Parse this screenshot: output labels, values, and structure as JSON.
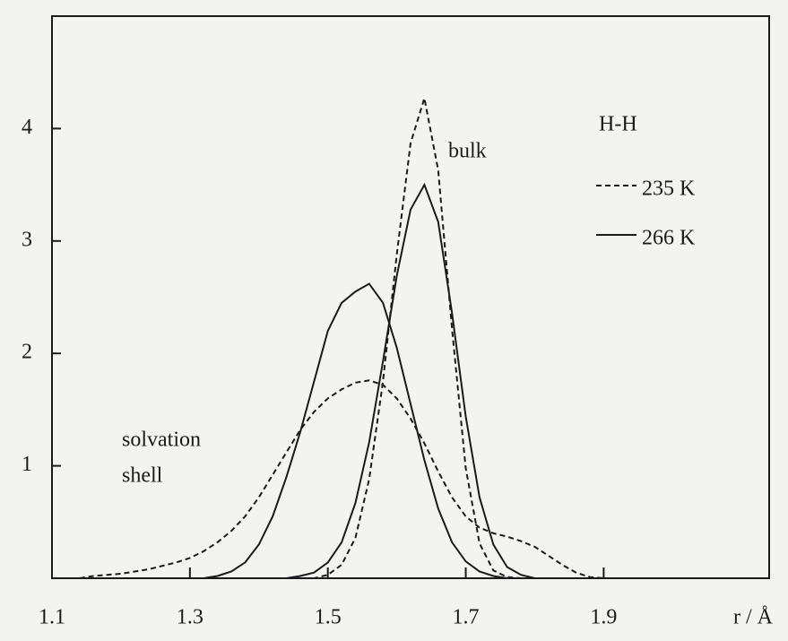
{
  "chart_data": {
    "type": "line",
    "title": "H-H",
    "x_label": "r / Å",
    "annotations": [
      "bulk",
      "solvation",
      "shell"
    ],
    "x": [
      1.14,
      1.16,
      1.18,
      1.2,
      1.22,
      1.24,
      1.26,
      1.28,
      1.3,
      1.32,
      1.34,
      1.36,
      1.38,
      1.4,
      1.42,
      1.44,
      1.46,
      1.48,
      1.5,
      1.52,
      1.54,
      1.56,
      1.58,
      1.6,
      1.62,
      1.64,
      1.66,
      1.68,
      1.7,
      1.72,
      1.74,
      1.76,
      1.78,
      1.8,
      1.82,
      1.84,
      1.86,
      1.88,
      1.9
    ],
    "series": [
      {
        "name": "235 K",
        "line_style": "dashed",
        "color": "#1a1a1a",
        "bulk": [
          0,
          0,
          0,
          0,
          0,
          0,
          0,
          0,
          0,
          0,
          0,
          0,
          0,
          0,
          0,
          0,
          0,
          0,
          0.03,
          0.12,
          0.36,
          0.88,
          1.75,
          2.88,
          3.87,
          4.27,
          3.63,
          2.22,
          0.98,
          0.31,
          0.07,
          0.01,
          0,
          0,
          0,
          0,
          0,
          0,
          0
        ],
        "solvation": [
          0,
          0.02,
          0.03,
          0.04,
          0.06,
          0.08,
          0.11,
          0.14,
          0.18,
          0.24,
          0.32,
          0.42,
          0.55,
          0.72,
          0.92,
          1.12,
          1.32,
          1.48,
          1.6,
          1.68,
          1.74,
          1.76,
          1.72,
          1.6,
          1.42,
          1.2,
          0.95,
          0.72,
          0.55,
          0.45,
          0.4,
          0.37,
          0.33,
          0.28,
          0.2,
          0.12,
          0.05,
          0.01,
          0
        ]
      },
      {
        "name": "266 K",
        "line_style": "solid",
        "color": "#1a1a1a",
        "bulk": [
          0,
          0,
          0,
          0,
          0,
          0,
          0,
          0,
          0,
          0,
          0,
          0,
          0,
          0,
          0,
          0,
          0.02,
          0.05,
          0.14,
          0.32,
          0.67,
          1.21,
          1.93,
          2.69,
          3.28,
          3.5,
          3.17,
          2.36,
          1.44,
          0.72,
          0.3,
          0.1,
          0.03,
          0,
          0,
          0,
          0,
          0,
          0
        ],
        "solvation": [
          0,
          0,
          0,
          0,
          0,
          0,
          0,
          0,
          0,
          0,
          0.02,
          0.06,
          0.14,
          0.3,
          0.55,
          0.9,
          1.3,
          1.75,
          2.2,
          2.45,
          2.55,
          2.62,
          2.45,
          2.05,
          1.55,
          1.05,
          0.62,
          0.32,
          0.15,
          0.06,
          0.02,
          0,
          0,
          0,
          0,
          0,
          0,
          0,
          0
        ]
      }
    ],
    "xlim": [
      1.1,
      2.14
    ],
    "xticks": [
      1.1,
      1.3,
      1.5,
      1.7,
      1.9
    ],
    "ylim": [
      0,
      5
    ],
    "yticks": [
      1,
      2,
      3,
      4
    ],
    "grid": false
  }
}
